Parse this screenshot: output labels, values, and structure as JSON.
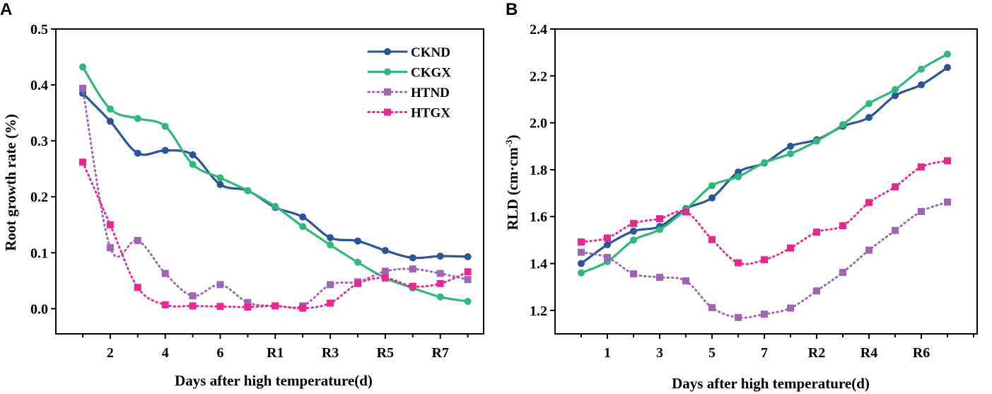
{
  "chart_data": [
    {
      "type": "line",
      "panel_label": "A",
      "xlabel": "Days after high temperature(d)",
      "ylabel": "Root growth rate (%)",
      "ylim": [
        -0.045,
        0.5
      ],
      "yticks": [
        "0.0",
        "0.1",
        "0.2",
        "0.3",
        "0.4",
        "0.5"
      ],
      "ytick_values": [
        0.0,
        0.1,
        0.2,
        0.3,
        0.4,
        0.5
      ],
      "x_count": 15,
      "xtick_labels": [
        {
          "index": 1,
          "label": "2"
        },
        {
          "index": 3,
          "label": "4"
        },
        {
          "index": 5,
          "label": "6"
        },
        {
          "index": 7,
          "label": "R1"
        },
        {
          "index": 9,
          "label": "R3"
        },
        {
          "index": 11,
          "label": "R5"
        },
        {
          "index": 13,
          "label": "R7"
        }
      ],
      "legend": {
        "position": "top-right",
        "entries": [
          "CKND",
          "CKGX",
          "HTND",
          "HTGX"
        ]
      },
      "series": [
        {
          "name": "CKND",
          "color": "#2a5597",
          "marker": "circle",
          "dash": "solid",
          "values": [
            0.385,
            0.335,
            0.278,
            0.283,
            0.275,
            0.222,
            0.211,
            0.181,
            0.164,
            0.127,
            0.121,
            0.104,
            0.091,
            0.094,
            0.093
          ]
        },
        {
          "name": "CKGX",
          "color": "#30b87a",
          "marker": "circle",
          "dash": "solid",
          "values": [
            0.432,
            0.357,
            0.34,
            0.326,
            0.258,
            0.234,
            0.211,
            0.183,
            0.147,
            0.114,
            0.083,
            0.055,
            0.037,
            0.021,
            0.013
          ]
        },
        {
          "name": "HTND",
          "color": "#a064b4",
          "marker": "square",
          "dash": "dotted",
          "values": [
            0.394,
            0.109,
            0.122,
            0.063,
            0.023,
            0.043,
            0.011,
            0.005,
            0.005,
            0.043,
            0.048,
            0.067,
            0.071,
            0.063,
            0.052
          ]
        },
        {
          "name": "HTGX",
          "color": "#e8278f",
          "marker": "square",
          "dash": "dotted",
          "values": [
            0.262,
            0.15,
            0.038,
            0.007,
            0.005,
            0.004,
            0.003,
            0.005,
            0.001,
            0.01,
            0.045,
            0.055,
            0.04,
            0.045,
            0.066
          ]
        }
      ]
    },
    {
      "type": "line",
      "panel_label": "B",
      "xlabel": "Days after high temperature(d)",
      "ylabel_main": "RLD (cm·cm",
      "ylabel_sup": "-3",
      "ylabel_tail": ")",
      "ylim": [
        1.1,
        2.4
      ],
      "yticks": [
        "1.2",
        "1.4",
        "1.6",
        "1.8",
        "2.0",
        "2.2",
        "2.4"
      ],
      "ytick_values": [
        1.2,
        1.4,
        1.6,
        1.8,
        2.0,
        2.2,
        2.4
      ],
      "x_count": 15,
      "xtick_labels": [
        {
          "index": 1,
          "label": "1"
        },
        {
          "index": 3,
          "label": "3"
        },
        {
          "index": 5,
          "label": "5"
        },
        {
          "index": 7,
          "label": "7"
        },
        {
          "index": 9,
          "label": "R2"
        },
        {
          "index": 11,
          "label": "R4"
        },
        {
          "index": 13,
          "label": "R6"
        }
      ],
      "series": [
        {
          "name": "CKND",
          "color": "#2a5597",
          "marker": "circle",
          "dash": "solid",
          "values": [
            1.4,
            1.48,
            1.538,
            1.558,
            1.634,
            1.68,
            1.79,
            1.828,
            1.9,
            1.928,
            1.985,
            2.023,
            2.116,
            2.162,
            2.236
          ]
        },
        {
          "name": "CKGX",
          "color": "#30b87a",
          "marker": "circle",
          "dash": "solid",
          "values": [
            1.36,
            1.408,
            1.5,
            1.545,
            1.63,
            1.732,
            1.77,
            1.83,
            1.868,
            1.922,
            1.992,
            2.082,
            2.142,
            2.229,
            2.293
          ]
        },
        {
          "name": "HTND",
          "color": "#a064b4",
          "marker": "square",
          "dash": "dotted",
          "values": [
            1.448,
            1.426,
            1.356,
            1.341,
            1.326,
            1.212,
            1.17,
            1.184,
            1.21,
            1.283,
            1.362,
            1.457,
            1.541,
            1.622,
            1.662
          ]
        },
        {
          "name": "HTGX",
          "color": "#e8278f",
          "marker": "square",
          "dash": "dotted",
          "values": [
            1.492,
            1.509,
            1.571,
            1.591,
            1.62,
            1.502,
            1.403,
            1.416,
            1.466,
            1.534,
            1.561,
            1.66,
            1.727,
            1.812,
            1.838
          ]
        }
      ]
    }
  ]
}
